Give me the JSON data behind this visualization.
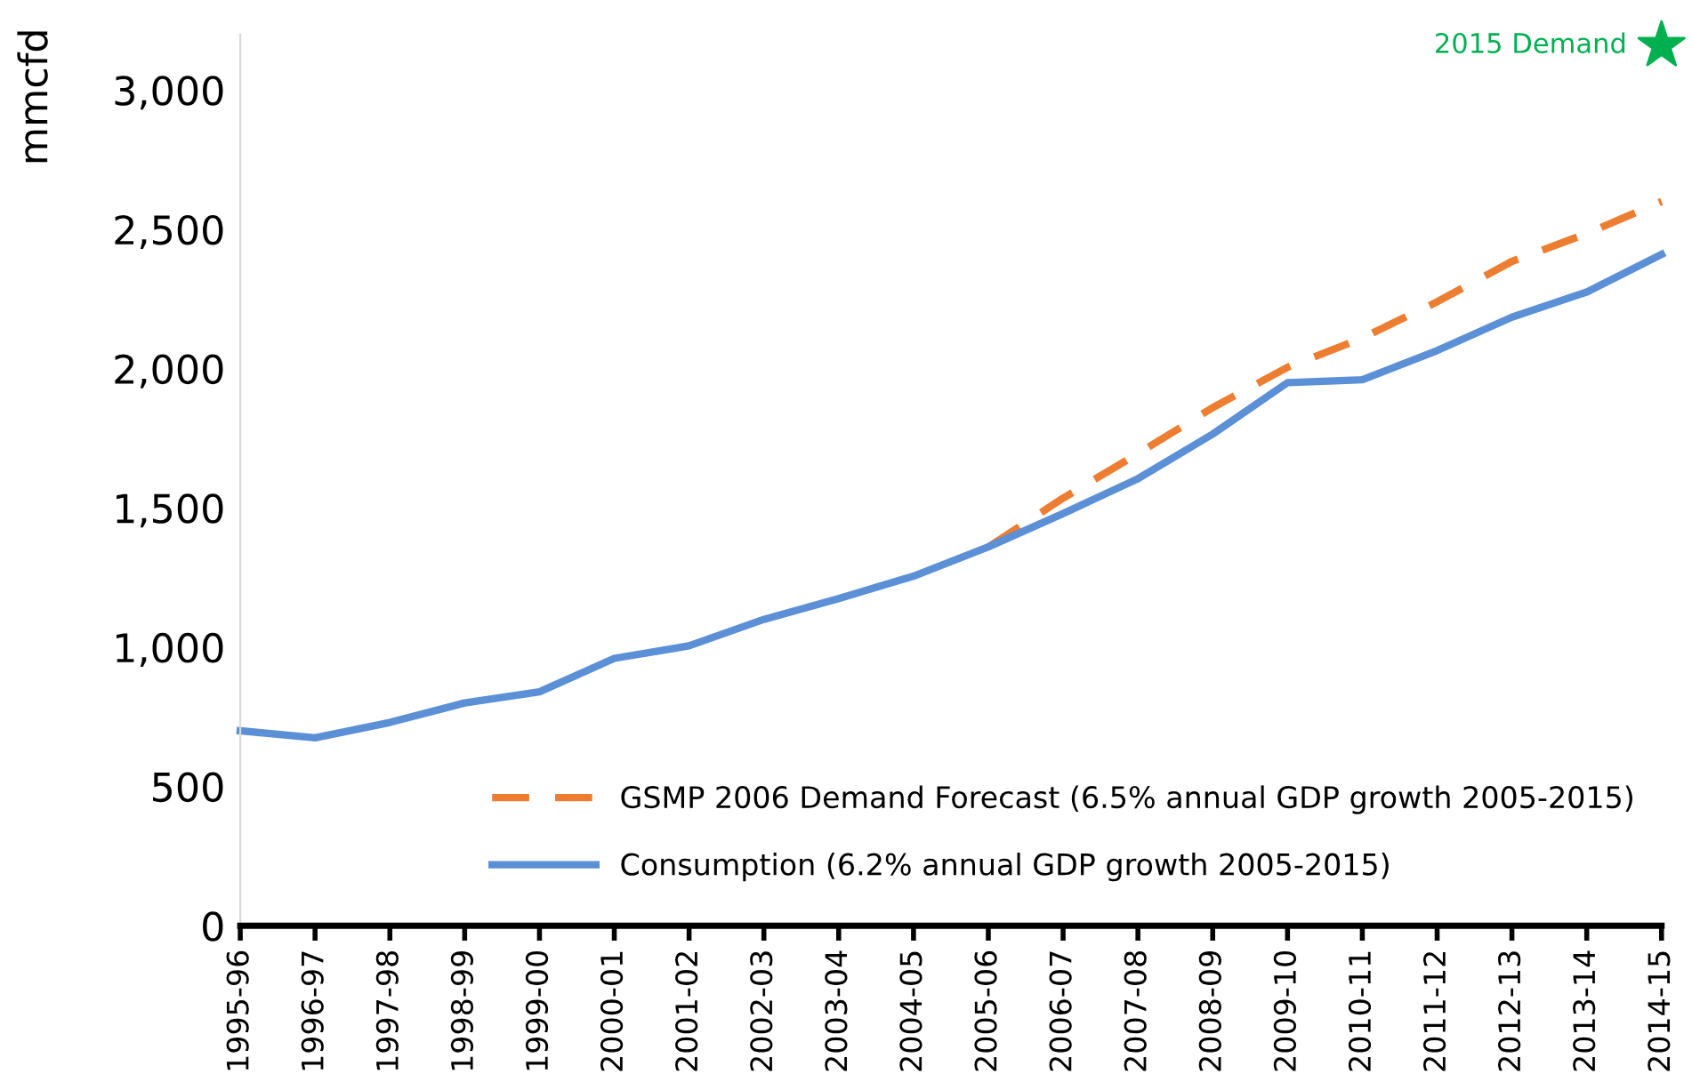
{
  "chart_data": {
    "type": "line",
    "ylabel": "mmcfd",
    "categories": [
      "1995-96",
      "1996-97",
      "1997-98",
      "1998-99",
      "1999-00",
      "2000-01",
      "2001-02",
      "2002-03",
      "2003-04",
      "2004-05",
      "2005-06",
      "2006-07",
      "2007-08",
      "2008-09",
      "2009-10",
      "2010-11",
      "2011-12",
      "2012-13",
      "2013-14",
      "2014-15"
    ],
    "series": [
      {
        "name": "GSMP 2006 Demand Forecast (6.5% annual GDP growth 2005-2015)",
        "color": "#ed7d31",
        "line_style": "dashed",
        "values": [
          null,
          null,
          null,
          null,
          null,
          null,
          null,
          null,
          null,
          null,
          1360,
          1535,
          1695,
          1860,
          2005,
          2110,
          2240,
          2385,
          2485,
          2600
        ]
      },
      {
        "name": "Consumption (6.2% annual GDP growth 2005-2015)",
        "color": "#5b8fd6",
        "line_style": "solid",
        "values": [
          700,
          675,
          730,
          800,
          840,
          960,
          1005,
          1100,
          1175,
          1255,
          1360,
          1480,
          1605,
          1765,
          1950,
          1960,
          2065,
          2185,
          2275,
          2410
        ]
      },
      {
        "name": "2015 Demand",
        "type": "scatter",
        "marker": "star",
        "color": "#00b050",
        "values": [
          null,
          null,
          null,
          null,
          null,
          null,
          null,
          null,
          null,
          null,
          null,
          null,
          null,
          null,
          null,
          null,
          null,
          null,
          null,
          3160
        ]
      }
    ],
    "ylim": [
      0,
      3200
    ],
    "yticks": [
      0,
      500,
      {
        "value": 1000,
        "label": "1,000"
      },
      {
        "value": 1500,
        "label": "1,500"
      },
      {
        "value": 2000,
        "label": "2,000"
      },
      {
        "value": 2500,
        "label": "2,500"
      },
      {
        "value": 3000,
        "label": "3,000"
      }
    ],
    "grid": false,
    "legend": "bottom right"
  }
}
